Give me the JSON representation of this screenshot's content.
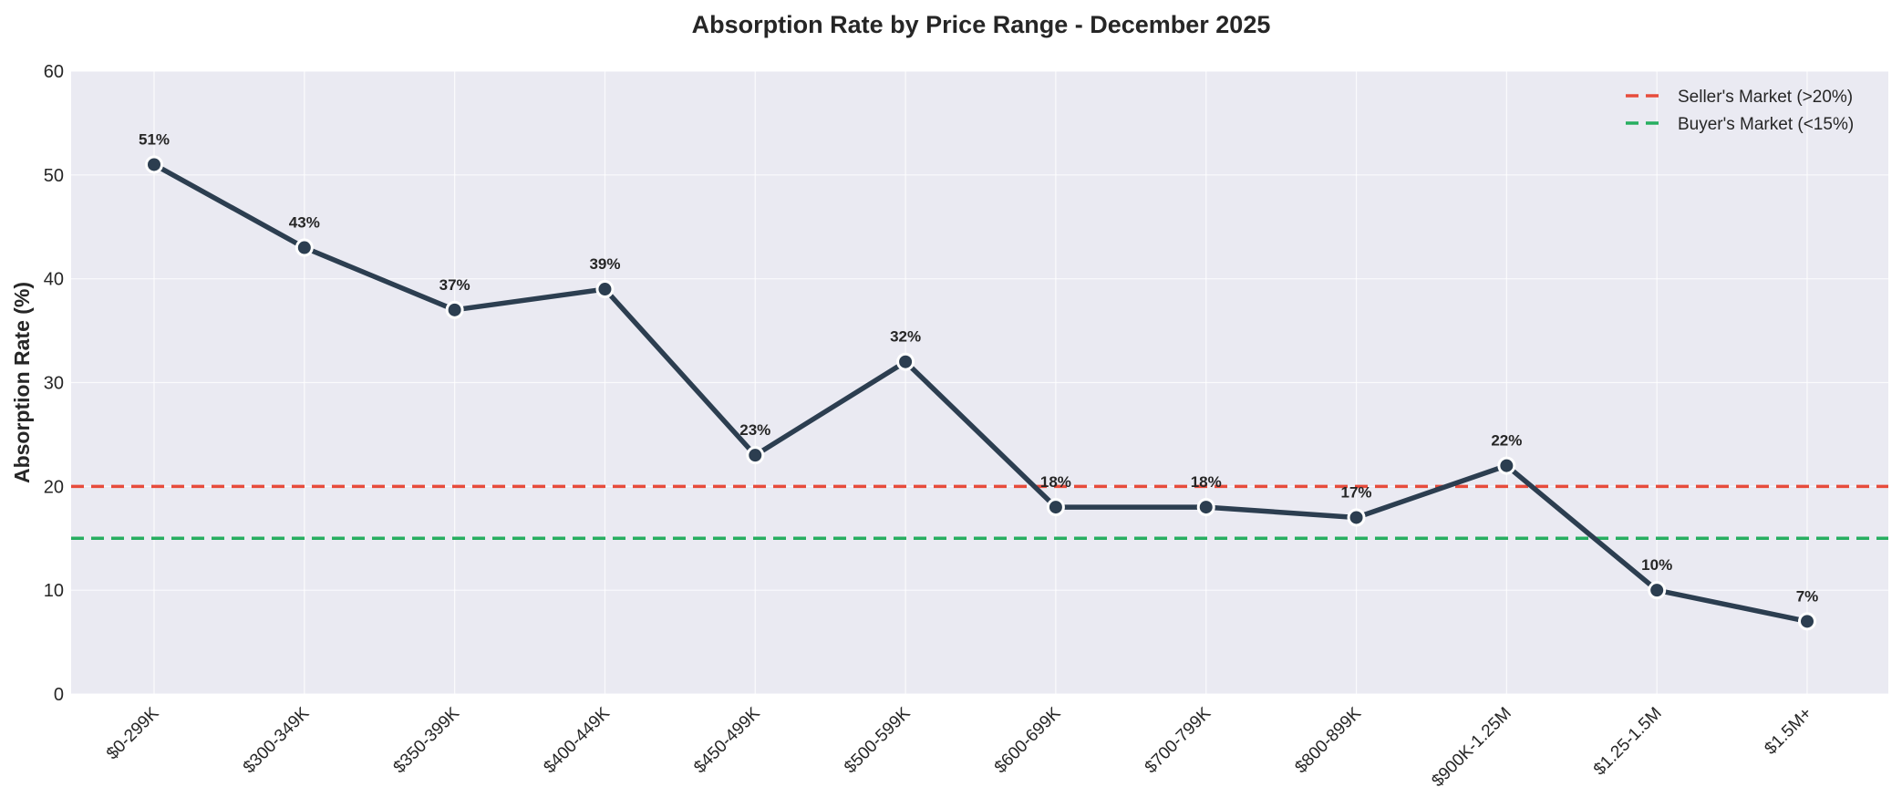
{
  "chart_data": {
    "type": "line",
    "title": "Absorption Rate by Price Range - December 2025",
    "xlabel": "",
    "ylabel": "Absorption Rate (%)",
    "ylim": [
      0,
      60
    ],
    "yticks": [
      0,
      10,
      20,
      30,
      40,
      50,
      60
    ],
    "grid": true,
    "categories": [
      "$0-299K",
      "$300-349K",
      "$350-399K",
      "$400-449K",
      "$450-499K",
      "$500-599K",
      "$600-699K",
      "$700-799K",
      "$800-899K",
      "$900K-1.25M",
      "$1.25-1.5M",
      "$1.5M+"
    ],
    "series": [
      {
        "name": "Absorption Rate",
        "values": [
          51,
          43,
          37,
          39,
          23,
          32,
          18,
          18,
          17,
          22,
          10,
          7
        ],
        "labels": [
          "51%",
          "43%",
          "37%",
          "39%",
          "23%",
          "32%",
          "18%",
          "18%",
          "17%",
          "22%",
          "10%",
          "7%"
        ],
        "color": "#2c3e50"
      }
    ],
    "reference_lines": [
      {
        "name": "Seller's Market (>20%)",
        "value": 20,
        "color": "#e74c3c",
        "style": "dashed"
      },
      {
        "name": "Buyer's Market (<15%)",
        "value": 15,
        "color": "#27ae60",
        "style": "dashed"
      }
    ],
    "legend_position": "top-right",
    "plot_background": "#eaeaf2"
  }
}
